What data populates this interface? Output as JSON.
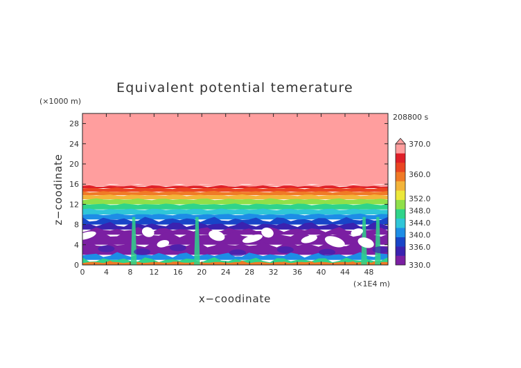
{
  "chart_data": {
    "type": "heatmap",
    "title": "Equivalent potential temerature",
    "xlabel": "x−coodinate",
    "ylabel": "z−coodinate",
    "x_unit": "(×1E4 m)",
    "y_unit": "(×1000 m)",
    "time_label": "208800 s",
    "xlim": [
      0,
      51.2
    ],
    "ylim": [
      0,
      30
    ],
    "x_ticks": [
      "0",
      "4",
      "8",
      "12",
      "16",
      "20",
      "24",
      "28",
      "32",
      "36",
      "40",
      "44",
      "48"
    ],
    "y_ticks": [
      "0",
      "4",
      "8",
      "12",
      "16",
      "20",
      "24",
      "28"
    ],
    "colorbar": {
      "labels": [
        "330.0",
        "336.0",
        "340.0",
        "344.0",
        "348.0",
        "352.0",
        "360.0",
        "370.0"
      ],
      "min": 330,
      "max": 370,
      "extend": "max"
    },
    "profile": [
      {
        "z": 0.3,
        "theta_e": 354
      },
      {
        "z": 1,
        "theta_e": 342
      },
      {
        "z": 2,
        "theta_e": 338
      },
      {
        "z": 4,
        "theta_e": 332
      },
      {
        "z": 6,
        "theta_e": 332
      },
      {
        "z": 7,
        "theta_e": 333
      },
      {
        "z": 8,
        "theta_e": 335
      },
      {
        "z": 9,
        "theta_e": 337
      },
      {
        "z": 10,
        "theta_e": 339
      },
      {
        "z": 11,
        "theta_e": 340
      },
      {
        "z": 12,
        "theta_e": 342
      },
      {
        "z": 13,
        "theta_e": 344
      },
      {
        "z": 13.8,
        "theta_e": 348
      },
      {
        "z": 14.5,
        "theta_e": 352
      },
      {
        "z": 15.2,
        "theta_e": 358
      },
      {
        "z": 15.6,
        "theta_e": 364
      },
      {
        "z": 16,
        "theta_e": 372
      }
    ],
    "white_below_330_regions": [
      {
        "x": 13.5,
        "z": 4.2
      },
      {
        "x": 22.5,
        "z": 5.8
      },
      {
        "x": 28.5,
        "z": 5.2
      },
      {
        "x": 31,
        "z": 6.4
      },
      {
        "x": 38,
        "z": 5.1
      },
      {
        "x": 42.3,
        "z": 4.6
      },
      {
        "x": 46,
        "z": 6.5
      },
      {
        "x": 47.5,
        "z": 4.4
      },
      {
        "x": 0.6,
        "z": 5.8
      },
      {
        "x": 11,
        "z": 6.5
      }
    ]
  },
  "colors": {
    "levels": [
      "#7b1fa2",
      "#3a22b0",
      "#1845c8",
      "#1d8de6",
      "#2fc6d8",
      "#2fd48a",
      "#8fe04a",
      "#ece83a",
      "#f3b43a",
      "#f07a26",
      "#ea4522",
      "#df1f28",
      "#ff9e9e"
    ],
    "white_region": "#ffffff"
  }
}
